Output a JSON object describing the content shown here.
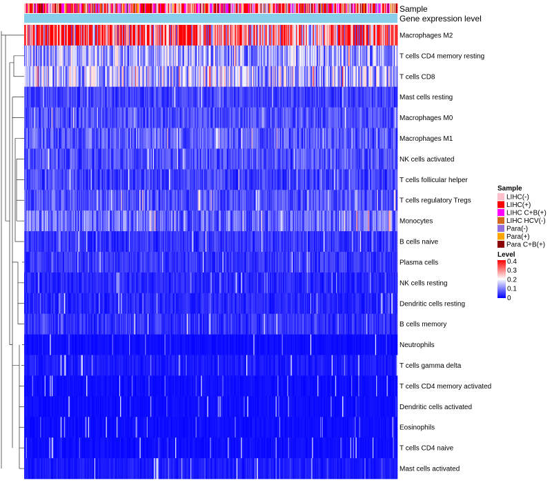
{
  "chart_data": {
    "type": "heatmap",
    "title": "",
    "top_annotations": [
      {
        "name": "Sample"
      },
      {
        "name": "Gene expression level"
      }
    ],
    "rows": [
      {
        "label": "Macrophages M2",
        "mean": 0.3
      },
      {
        "label": "T cells CD4 memory resting",
        "mean": 0.13
      },
      {
        "label": "T cells CD8",
        "mean": 0.15
      },
      {
        "label": "Mast cells resting",
        "mean": 0.05
      },
      {
        "label": "Macrophages M0",
        "mean": 0.06
      },
      {
        "label": "Macrophages M1",
        "mean": 0.07
      },
      {
        "label": "NK cells activated",
        "mean": 0.06
      },
      {
        "label": "T cells follicular helper",
        "mean": 0.05
      },
      {
        "label": "T cells regulatory  Tregs",
        "mean": 0.06
      },
      {
        "label": "Monocytes",
        "mean": 0.08
      },
      {
        "label": "B cells naive",
        "mean": 0.04
      },
      {
        "label": "Plasma cells",
        "mean": 0.04
      },
      {
        "label": "NK cells resting",
        "mean": 0.03
      },
      {
        "label": "Dendritic cells resting",
        "mean": 0.03
      },
      {
        "label": "B cells memory",
        "mean": 0.04
      },
      {
        "label": "Neutrophils",
        "mean": 0.01
      },
      {
        "label": "T cells gamma delta",
        "mean": 0.02
      },
      {
        "label": "T cells CD4 memory activated",
        "mean": 0.01
      },
      {
        "label": "Dendritic cells activated",
        "mean": 0.01
      },
      {
        "label": "Eosinophils",
        "mean": 0.01
      },
      {
        "label": "T cells CD4 naive",
        "mean": 0.01
      },
      {
        "label": "Mast cells activated",
        "mean": 0.02
      }
    ],
    "sample_legend": {
      "title": "Sample",
      "items": [
        {
          "label": "LIHC(-)",
          "color": "#ffc0cb"
        },
        {
          "label": "LIHC(+)",
          "color": "#ff0000"
        },
        {
          "label": "LIHC C+B(+)",
          "color": "#ff00ff"
        },
        {
          "label": "LIHC HCV(-)",
          "color": "#d2691e"
        },
        {
          "label": "Para(-)",
          "color": "#9370db"
        },
        {
          "label": "Para(+)",
          "color": "#ffa500"
        },
        {
          "label": "Para C+B(+)",
          "color": "#8b0000"
        }
      ]
    },
    "level_legend": {
      "title": "Level",
      "ticks": [
        "0.4",
        "0.3",
        "0.2",
        "0.1",
        "0"
      ],
      "range": [
        0,
        0.4
      ],
      "colors": {
        "low": "#0000ff",
        "mid": "#ffffff",
        "high": "#ff0000"
      }
    },
    "expression_bar_color": "#87ceeb",
    "n_samples": 420
  }
}
